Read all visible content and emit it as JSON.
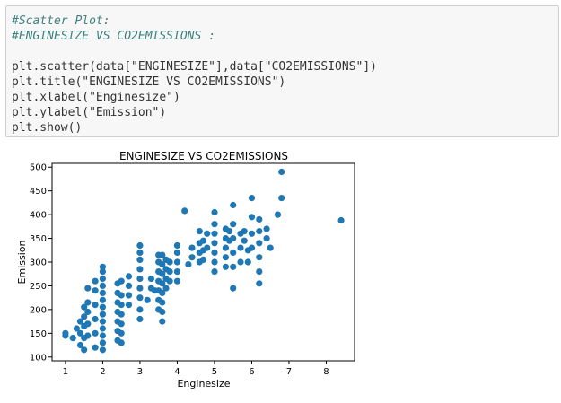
{
  "code": {
    "lines": [
      {
        "type": "comment",
        "text": "#Scatter Plot:"
      },
      {
        "type": "comment",
        "text": "#ENGINESIZE VS CO2EMISSIONS :"
      },
      {
        "type": "blank",
        "text": ""
      },
      {
        "type": "code",
        "text": "plt.scatter(data[\"ENGINESIZE\"],data[\"CO2EMISSIONS\"])"
      },
      {
        "type": "code",
        "text": "plt.title(\"ENGINESIZE VS CO2EMISSIONS\")"
      },
      {
        "type": "code",
        "text": "plt.xlabel(\"Enginesize\")"
      },
      {
        "type": "code",
        "text": "plt.ylabel(\"Emission\")"
      },
      {
        "type": "code",
        "text": "plt.show()"
      }
    ]
  },
  "chart_data": {
    "type": "scatter",
    "title": "ENGINESIZE VS CO2EMISSIONS",
    "xlabel": "Enginesize",
    "ylabel": "Emission",
    "xlim": [
      0.64,
      8.76
    ],
    "ylim": [
      92,
      508
    ],
    "xticks": [
      1,
      2,
      3,
      4,
      5,
      6,
      7,
      8
    ],
    "yticks": [
      100,
      150,
      200,
      250,
      300,
      350,
      400,
      450,
      500
    ],
    "marker_color": "#1f77b4",
    "points": [
      [
        1.0,
        145
      ],
      [
        1.0,
        150
      ],
      [
        1.2,
        140
      ],
      [
        1.3,
        160
      ],
      [
        1.4,
        125
      ],
      [
        1.4,
        150
      ],
      [
        1.4,
        175
      ],
      [
        1.5,
        115
      ],
      [
        1.5,
        140
      ],
      [
        1.5,
        165
      ],
      [
        1.5,
        185
      ],
      [
        1.5,
        205
      ],
      [
        1.6,
        145
      ],
      [
        1.6,
        170
      ],
      [
        1.6,
        195
      ],
      [
        1.6,
        215
      ],
      [
        1.8,
        120
      ],
      [
        1.8,
        150
      ],
      [
        1.8,
        180
      ],
      [
        1.8,
        210
      ],
      [
        1.8,
        240
      ],
      [
        1.8,
        260
      ],
      [
        1.6,
        245
      ],
      [
        2.0,
        115
      ],
      [
        2.0,
        130
      ],
      [
        2.0,
        145
      ],
      [
        2.0,
        160
      ],
      [
        2.0,
        175
      ],
      [
        2.0,
        190
      ],
      [
        2.0,
        205
      ],
      [
        2.0,
        220
      ],
      [
        2.0,
        235
      ],
      [
        2.0,
        250
      ],
      [
        2.0,
        265
      ],
      [
        2.0,
        280
      ],
      [
        2.0,
        290
      ],
      [
        2.4,
        135
      ],
      [
        2.4,
        155
      ],
      [
        2.4,
        175
      ],
      [
        2.4,
        195
      ],
      [
        2.4,
        215
      ],
      [
        2.4,
        235
      ],
      [
        2.4,
        255
      ],
      [
        2.5,
        130
      ],
      [
        2.5,
        150
      ],
      [
        2.5,
        170
      ],
      [
        2.5,
        190
      ],
      [
        2.5,
        210
      ],
      [
        2.5,
        230
      ],
      [
        2.5,
        260
      ],
      [
        2.7,
        210
      ],
      [
        2.7,
        230
      ],
      [
        2.7,
        250
      ],
      [
        2.7,
        270
      ],
      [
        3.0,
        180
      ],
      [
        3.0,
        200
      ],
      [
        3.0,
        225
      ],
      [
        3.0,
        245
      ],
      [
        3.0,
        265
      ],
      [
        3.0,
        285
      ],
      [
        3.0,
        305
      ],
      [
        3.0,
        320
      ],
      [
        3.0,
        335
      ],
      [
        3.2,
        220
      ],
      [
        3.3,
        245
      ],
      [
        3.3,
        265
      ],
      [
        3.4,
        240
      ],
      [
        3.5,
        200
      ],
      [
        3.5,
        220
      ],
      [
        3.5,
        240
      ],
      [
        3.5,
        260
      ],
      [
        3.5,
        280
      ],
      [
        3.5,
        300
      ],
      [
        3.5,
        315
      ],
      [
        3.6,
        175
      ],
      [
        3.6,
        195
      ],
      [
        3.6,
        215
      ],
      [
        3.6,
        235
      ],
      [
        3.6,
        255
      ],
      [
        3.6,
        275
      ],
      [
        3.6,
        295
      ],
      [
        3.6,
        315
      ],
      [
        3.7,
        245
      ],
      [
        3.7,
        265
      ],
      [
        3.7,
        285
      ],
      [
        3.7,
        305
      ],
      [
        3.8,
        260
      ],
      [
        3.8,
        280
      ],
      [
        3.8,
        300
      ],
      [
        4.0,
        260
      ],
      [
        4.0,
        280
      ],
      [
        4.0,
        300
      ],
      [
        4.0,
        320
      ],
      [
        4.0,
        335
      ],
      [
        4.2,
        408
      ],
      [
        4.3,
        295
      ],
      [
        4.4,
        310
      ],
      [
        4.4,
        330
      ],
      [
        4.6,
        300
      ],
      [
        4.6,
        320
      ],
      [
        4.6,
        340
      ],
      [
        4.6,
        365
      ],
      [
        4.7,
        305
      ],
      [
        4.7,
        325
      ],
      [
        4.7,
        345
      ],
      [
        4.8,
        330
      ],
      [
        4.8,
        360
      ],
      [
        5.0,
        280
      ],
      [
        5.0,
        300
      ],
      [
        5.0,
        320
      ],
      [
        5.0,
        340
      ],
      [
        5.0,
        360
      ],
      [
        5.0,
        380
      ],
      [
        5.0,
        405
      ],
      [
        5.3,
        290
      ],
      [
        5.3,
        310
      ],
      [
        5.3,
        330
      ],
      [
        5.3,
        350
      ],
      [
        5.3,
        370
      ],
      [
        5.4,
        345
      ],
      [
        5.4,
        365
      ],
      [
        5.5,
        245
      ],
      [
        5.5,
        290
      ],
      [
        5.5,
        320
      ],
      [
        5.5,
        350
      ],
      [
        5.5,
        380
      ],
      [
        5.5,
        420
      ],
      [
        5.7,
        300
      ],
      [
        5.7,
        330
      ],
      [
        5.7,
        360
      ],
      [
        5.8,
        345
      ],
      [
        5.8,
        365
      ],
      [
        5.9,
        300
      ],
      [
        5.9,
        325
      ],
      [
        6.0,
        330
      ],
      [
        6.0,
        360
      ],
      [
        6.0,
        395
      ],
      [
        6.0,
        435
      ],
      [
        6.2,
        255
      ],
      [
        6.2,
        280
      ],
      [
        6.2,
        310
      ],
      [
        6.2,
        340
      ],
      [
        6.2,
        365
      ],
      [
        6.2,
        390
      ],
      [
        6.4,
        350
      ],
      [
        6.4,
        370
      ],
      [
        6.5,
        330
      ],
      [
        6.7,
        400
      ],
      [
        6.8,
        435
      ],
      [
        6.8,
        490
      ],
      [
        8.4,
        388
      ]
    ]
  }
}
